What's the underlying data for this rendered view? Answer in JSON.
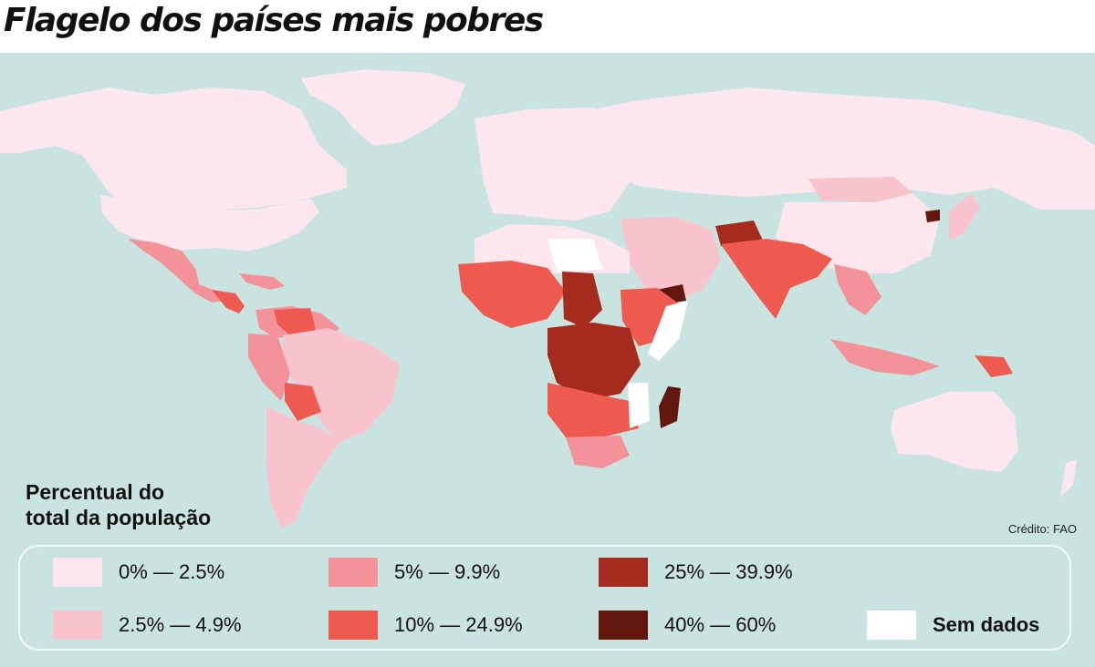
{
  "header": {
    "title": "Flagelo dos países mais pobres"
  },
  "legend": {
    "title_line1": "Percentual do",
    "title_line2": "total da população",
    "items": [
      {
        "label": "0% — 2.5%",
        "color": "#fce7ee"
      },
      {
        "label": "2.5% — 4.9%",
        "color": "#f9c3cd"
      },
      {
        "label": "5% — 9.9%",
        "color": "#f39298"
      },
      {
        "label": "10% — 24.9%",
        "color": "#ee5a4f"
      },
      {
        "label": "25% — 39.9%",
        "color": "#a52b1e"
      },
      {
        "label": "40% — 60%",
        "color": "#62180e"
      },
      {
        "label": "Sem dados",
        "color": "#ffffff"
      }
    ]
  },
  "credit": "Crédito: FAO",
  "colors": {
    "ocean": "#c9e4e0",
    "c1": "#fce7ee",
    "c2": "#f9c3cd",
    "c3": "#f39298",
    "c4": "#ee5a4f",
    "c5": "#a52b1e",
    "c6": "#62180e",
    "nodata": "#ffffff"
  }
}
